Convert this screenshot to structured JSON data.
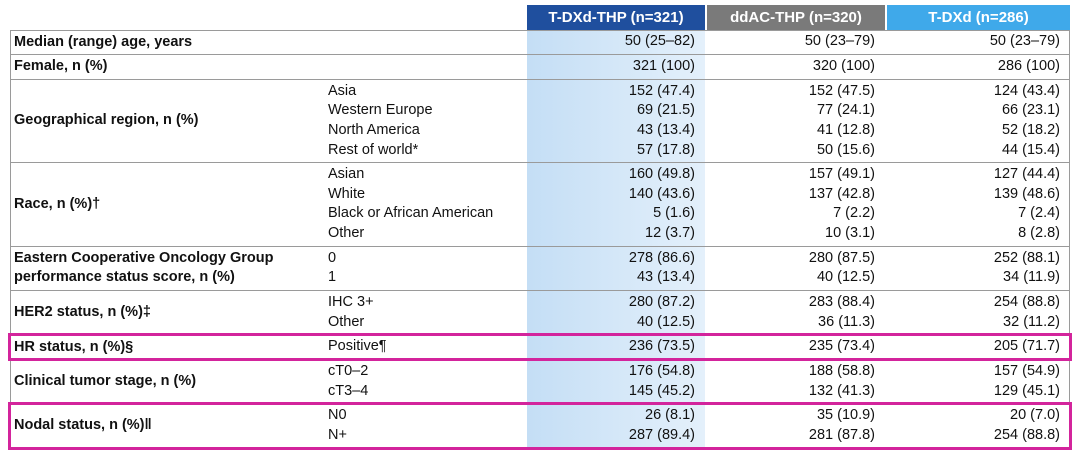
{
  "header": {
    "columns": [
      "T-DXd-THP (n=321)",
      "ddAC-THP (n=320)",
      "T-DXd (n=286)"
    ]
  },
  "rows": [
    {
      "label": "Median (range) age, years",
      "items": [
        {
          "values": [
            "50 (25–82)",
            "50 (23–79)",
            "50 (23–79)"
          ]
        }
      ]
    },
    {
      "label": "Female, n (%)",
      "items": [
        {
          "values": [
            "321 (100)",
            "320 (100)",
            "286 (100)"
          ]
        }
      ]
    },
    {
      "label": "Geographical region, n (%)",
      "items": [
        {
          "sub": "Asia",
          "values": [
            "152 (47.4)",
            "152 (47.5)",
            "124 (43.4)"
          ]
        },
        {
          "sub": "Western Europe",
          "values": [
            "69 (21.5)",
            "77 (24.1)",
            "66 (23.1)"
          ]
        },
        {
          "sub": "North America",
          "values": [
            "43 (13.4)",
            "41 (12.8)",
            "52 (18.2)"
          ]
        },
        {
          "sub": "Rest of world*",
          "values": [
            "57 (17.8)",
            "50 (15.6)",
            "44 (15.4)"
          ]
        }
      ]
    },
    {
      "label": "Race, n (%)†",
      "items": [
        {
          "sub": "Asian",
          "values": [
            "160 (49.8)",
            "157 (49.1)",
            "127 (44.4)"
          ]
        },
        {
          "sub": "White",
          "values": [
            "140 (43.6)",
            "137 (42.8)",
            "139 (48.6)"
          ]
        },
        {
          "sub": "Black or African American",
          "values": [
            "5 (1.6)",
            "7 (2.2)",
            "7 (2.4)"
          ]
        },
        {
          "sub": "Other",
          "values": [
            "12 (3.7)",
            "10 (3.1)",
            "8 (2.8)"
          ]
        }
      ]
    },
    {
      "label": "Eastern Cooperative Oncology Group performance status score, n (%)",
      "items": [
        {
          "sub": "0",
          "values": [
            "278 (86.6)",
            "280 (87.5)",
            "252 (88.1)"
          ]
        },
        {
          "sub": "1",
          "values": [
            "43 (13.4)",
            "40 (12.5)",
            "34 (11.9)"
          ]
        }
      ]
    },
    {
      "label": "HER2 status, n (%)‡",
      "items": [
        {
          "sub": "IHC 3+",
          "values": [
            "280 (87.2)",
            "283 (88.4)",
            "254 (88.8)"
          ]
        },
        {
          "sub": "Other",
          "values": [
            "40 (12.5)",
            "36 (11.3)",
            "32 (11.2)"
          ]
        }
      ]
    },
    {
      "label": "HR status, n (%)§",
      "highlighted": true,
      "items": [
        {
          "sub": "Positive¶",
          "values": [
            "236 (73.5)",
            "235 (73.4)",
            "205 (71.7)"
          ]
        }
      ]
    },
    {
      "label": "Clinical tumor stage, n (%)",
      "items": [
        {
          "sub": "cT0–2",
          "values": [
            "176 (54.8)",
            "188 (58.8)",
            "157 (54.9)"
          ]
        },
        {
          "sub": "cT3–4",
          "values": [
            "145 (45.2)",
            "132 (41.3)",
            "129 (45.1)"
          ]
        }
      ]
    },
    {
      "label": "Nodal status, n (%)‖",
      "highlighted": true,
      "items": [
        {
          "sub": "N0",
          "values": [
            "26 (8.1)",
            "35 (10.9)",
            "20 (7.0)"
          ]
        },
        {
          "sub": "N+",
          "values": [
            "287 (89.4)",
            "281 (87.8)",
            "254 (88.8)"
          ]
        }
      ]
    }
  ]
}
